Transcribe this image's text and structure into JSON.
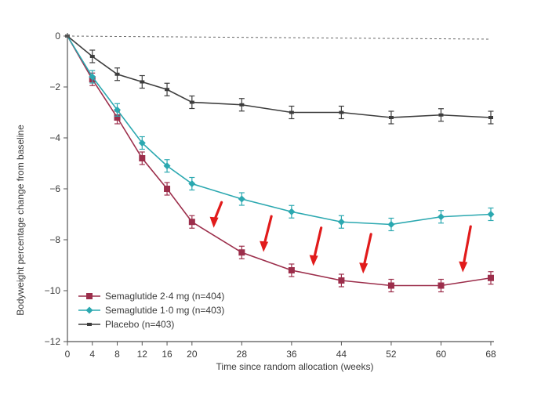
{
  "chart_data": {
    "type": "line",
    "xlabel": "Time since random allocation (weeks)",
    "ylabel": "Bodyweight percentage change from baseline",
    "x_ticks": [
      0,
      4,
      8,
      12,
      16,
      20,
      28,
      36,
      44,
      52,
      60,
      68
    ],
    "y_ticks": [
      0,
      -2,
      -4,
      -6,
      -8,
      -10,
      -12
    ],
    "xlim": [
      0,
      68
    ],
    "ylim": [
      -12,
      0
    ],
    "reference_line_y": 0,
    "grid": false,
    "legend_position": "bottom-left",
    "series": [
      {
        "name": "Semaglutide 2·4 mg (n=404)",
        "color": "#9c2e4b",
        "marker": "square",
        "x": [
          0,
          4,
          8,
          12,
          16,
          20,
          28,
          36,
          44,
          52,
          60,
          68
        ],
        "values": [
          0,
          -1.7,
          -3.2,
          -4.8,
          -6.0,
          -7.3,
          -8.5,
          -9.2,
          -9.6,
          -9.8,
          -9.8,
          -9.5
        ]
      },
      {
        "name": "Semaglutide 1·0 mg (n=403)",
        "color": "#2ba8b0",
        "marker": "diamond",
        "x": [
          0,
          4,
          8,
          12,
          16,
          20,
          28,
          36,
          44,
          52,
          60,
          68
        ],
        "values": [
          0,
          -1.6,
          -2.9,
          -4.2,
          -5.1,
          -5.8,
          -6.4,
          -6.9,
          -7.3,
          -7.4,
          -7.1,
          -7.0
        ]
      },
      {
        "name": "Placebo (n=403)",
        "color": "#3d3d3d",
        "marker": "dash",
        "x": [
          0,
          4,
          8,
          12,
          16,
          20,
          28,
          36,
          44,
          52,
          60,
          68
        ],
        "values": [
          0,
          -0.8,
          -1.5,
          -1.8,
          -2.1,
          -2.6,
          -2.7,
          -3.0,
          -3.0,
          -3.2,
          -3.1,
          -3.2
        ]
      }
    ],
    "annotations": {
      "arrows": {
        "color": "#e11b1b",
        "x": [
          24,
          32,
          40,
          48,
          64
        ]
      }
    }
  }
}
